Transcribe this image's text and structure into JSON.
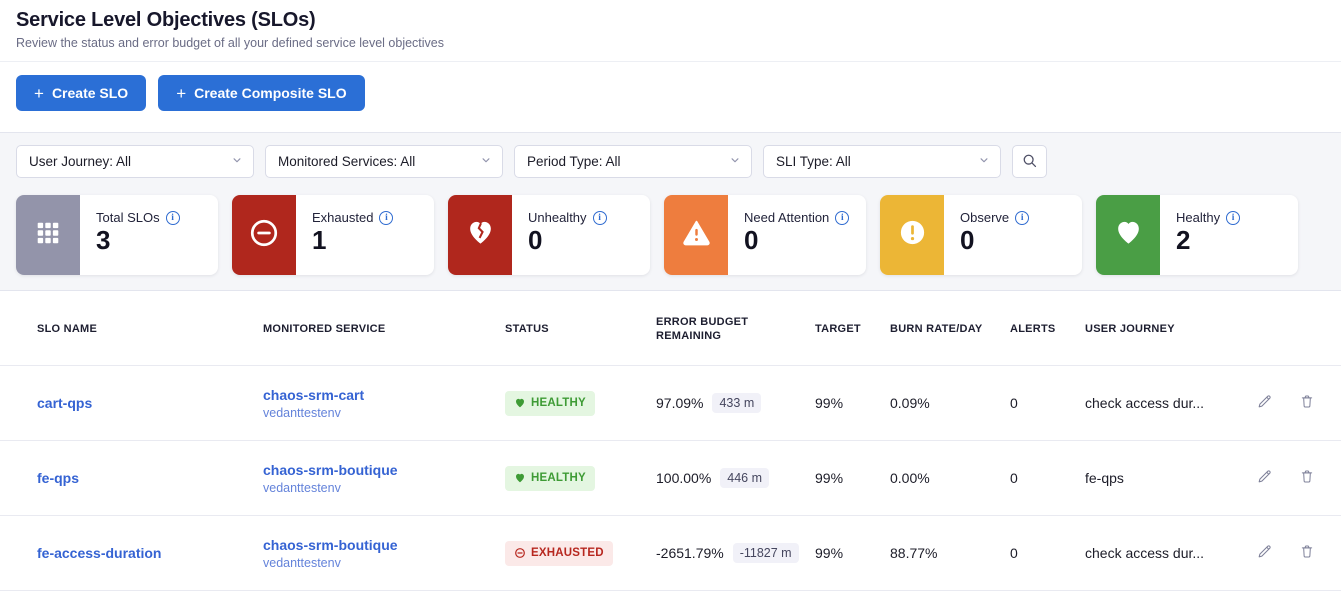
{
  "header": {
    "title": "Service Level Objectives (SLOs)",
    "subtitle": "Review the status and error budget of all your defined service level objectives"
  },
  "toolbar": {
    "create_slo_label": "Create SLO",
    "create_composite_slo_label": "Create Composite SLO"
  },
  "filters": {
    "dropdowns": [
      {
        "label": "User Journey: All"
      },
      {
        "label": "Monitored Services: All"
      },
      {
        "label": "Period Type: All"
      },
      {
        "label": "SLI Type: All"
      }
    ]
  },
  "summary_cards": [
    {
      "label": "Total SLOs",
      "value": "3",
      "icon": "grid",
      "color": "#9394aa"
    },
    {
      "label": "Exhausted",
      "value": "1",
      "icon": "minus-circle",
      "color": "#b0271d"
    },
    {
      "label": "Unhealthy",
      "value": "0",
      "icon": "broken-heart",
      "color": "#b0271d"
    },
    {
      "label": "Need Attention",
      "value": "0",
      "icon": "warning-triangle",
      "color": "#ee7d3e"
    },
    {
      "label": "Observe",
      "value": "0",
      "icon": "exclamation-circle",
      "color": "#ecb636"
    },
    {
      "label": "Healthy",
      "value": "2",
      "icon": "heart",
      "color": "#4a9e45"
    }
  ],
  "table": {
    "columns": {
      "slo_name": "SLO NAME",
      "monitored_service": "MONITORED SERVICE",
      "status": "STATUS",
      "error_budget": "ERROR BUDGET REMAINING",
      "target": "TARGET",
      "burn_rate": "BURN RATE/DAY",
      "alerts": "ALERTS",
      "user_journey": "USER JOURNEY"
    },
    "rows": [
      {
        "slo_name": "cart-qps",
        "service": "chaos-srm-cart",
        "environment": "vedanttestenv",
        "status_label": "HEALTHY",
        "status_type": "healthy",
        "status_icon": "heart-badge",
        "error_budget_pct": "97.09%",
        "error_budget_minutes": "433 m",
        "target": "99%",
        "burn_rate": "0.09%",
        "alerts": "0",
        "user_journey": "check access dur..."
      },
      {
        "slo_name": "fe-qps",
        "service": "chaos-srm-boutique",
        "environment": "vedanttestenv",
        "status_label": "HEALTHY",
        "status_type": "healthy",
        "status_icon": "heart-badge",
        "error_budget_pct": "100.00%",
        "error_budget_minutes": "446 m",
        "target": "99%",
        "burn_rate": "0.00%",
        "alerts": "0",
        "user_journey": "fe-qps"
      },
      {
        "slo_name": "fe-access-duration",
        "service": "chaos-srm-boutique",
        "environment": "vedanttestenv",
        "status_label": "EXHAUSTED",
        "status_type": "exhausted",
        "status_icon": "minus-circle-badge",
        "error_budget_pct": "-2651.79%",
        "error_budget_minutes": "-11827 m",
        "target": "99%",
        "burn_rate": "88.77%",
        "alerts": "0",
        "user_journey": "check access dur..."
      }
    ]
  }
}
